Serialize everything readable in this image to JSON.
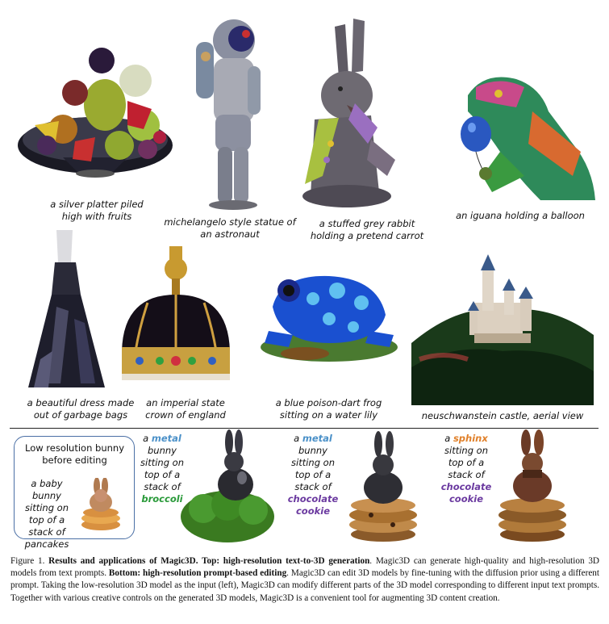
{
  "top_row": [
    {
      "caption_line1": "a silver platter piled",
      "caption_line2": "high with fruits"
    },
    {
      "caption_line1": "michelangelo style statue of",
      "caption_line2": "an astronaut"
    },
    {
      "caption_line1": "a stuffed grey rabbit",
      "caption_line2": "holding a pretend carrot"
    },
    {
      "caption_line1": "an iguana holding a balloon",
      "caption_line2": ""
    }
  ],
  "middle_row": [
    {
      "caption_line1": "a beautiful dress made",
      "caption_line2": "out of garbage bags"
    },
    {
      "caption_line1": "an imperial state",
      "caption_line2": "crown of england"
    },
    {
      "caption_line1": "a blue poison-dart frog",
      "caption_line2": "sitting on a water lily"
    },
    {
      "caption_line1": "neuschwanstein castle, aerial view",
      "caption_line2": ""
    }
  ],
  "editing": {
    "box_title_line1": "Low resolution bunny",
    "box_title_line2": "before editing",
    "box_prompt": [
      "a baby bunny",
      "sitting on",
      "top of a",
      "stack of",
      "pancakes"
    ],
    "edit1": {
      "pre": "a",
      "keyword": "metal",
      "lines": [
        "bunny",
        "sitting on",
        "top of a",
        "stack of"
      ],
      "keyword2": "broccoli"
    },
    "edit2": {
      "pre": "a",
      "keyword": "metal",
      "lines": [
        "bunny",
        "sitting on",
        "top of a",
        "stack of"
      ],
      "keyword2_line1": "chocolate",
      "keyword2_line2": "cookie"
    },
    "edit3": {
      "pre": "a",
      "keyword": "sphinx",
      "lines": [
        "sitting on",
        "top of a",
        "stack of"
      ],
      "keyword2_line1": "chocolate",
      "keyword2_line2": "cookie"
    }
  },
  "colors": {
    "metal": "#4a90c8",
    "broccoli": "#2a9a3a",
    "chocolate": "#6b3aa0",
    "sphinx": "#e0802a"
  },
  "figure_caption": {
    "label": "Figure 1.",
    "bold1": "Results and applications of Magic3D. Top: high-resolution text-to-3D generation",
    "text1": ". Magic3D can generate high-quality and high-resolution 3D models from text prompts.",
    "bold2": "Bottom: high-resolution prompt-based editing",
    "text2": ". Magic3D can edit 3D models by fine-tuning with the diffusion prior using a different prompt. Taking the low-resolution 3D model as the input (left), Magic3D can modify different parts of the 3D model corresponding to different input text prompts. Together with various creative controls on the generated 3D models, Magic3D is a convenient tool for augmenting 3D content creation."
  }
}
